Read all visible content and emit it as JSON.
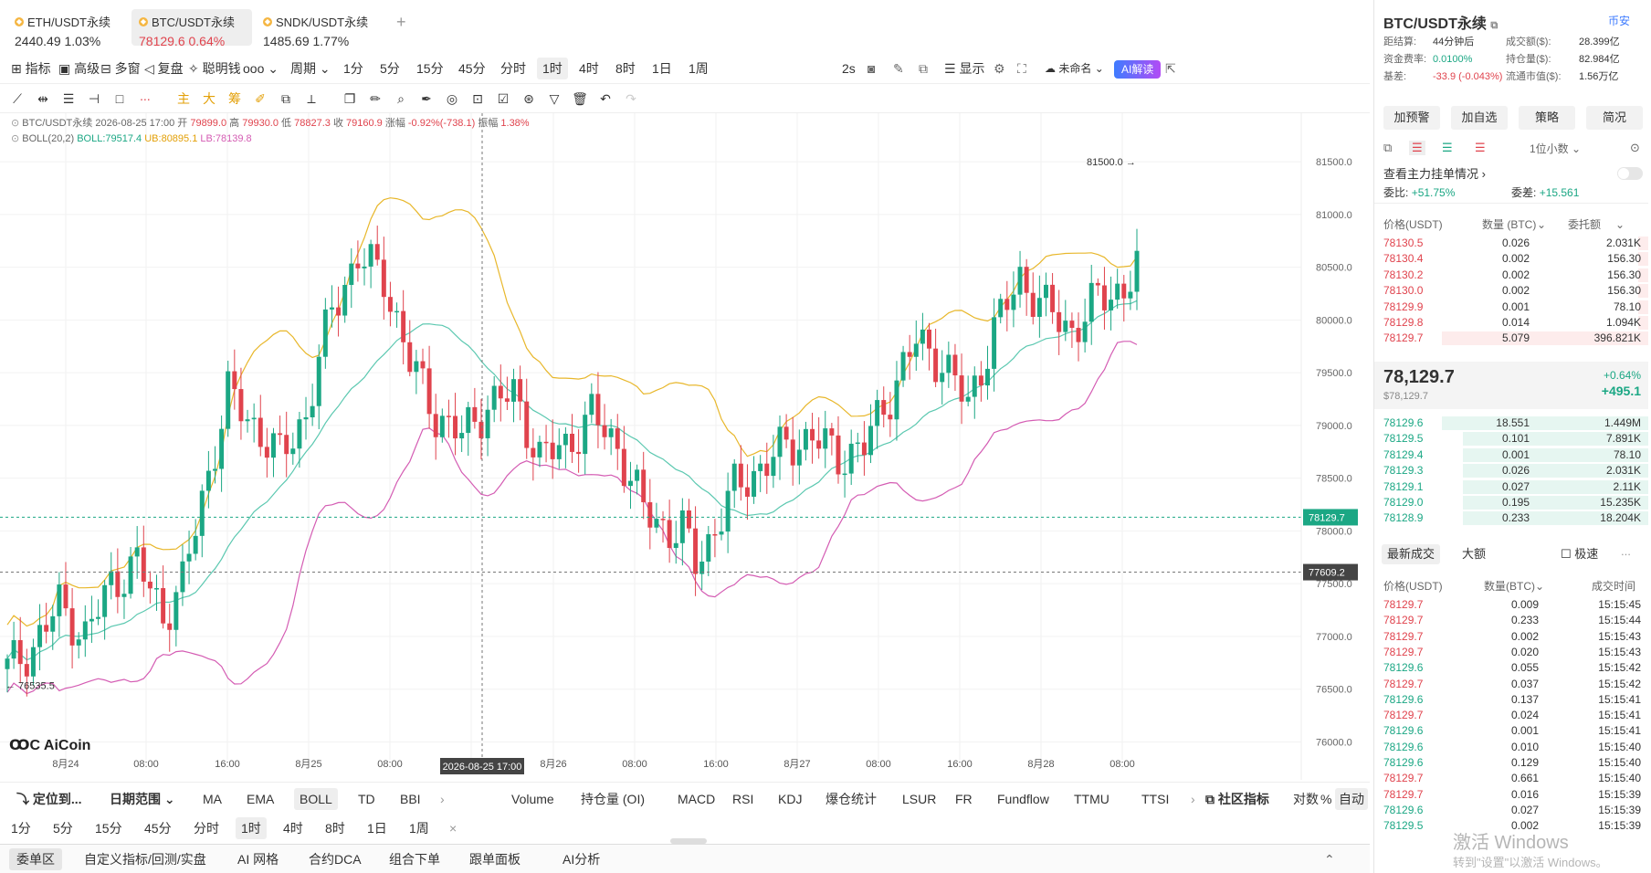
{
  "tabs": [
    {
      "label": "ETH/USDT永续",
      "price": "2440.49",
      "change": "1.03%",
      "dir": "up"
    },
    {
      "label": "BTC/USDT永续",
      "price": "78129.6",
      "change": "0.64%",
      "dir": "up"
    },
    {
      "label": "SNDK/USDT永续",
      "price": "1485.69",
      "change": "1.77%",
      "dir": "up"
    }
  ],
  "add_tab": "+",
  "toolbar1": {
    "items": [
      "指标",
      "高级",
      "多窗",
      "复盘",
      "聪明钱",
      "周期",
      "1分",
      "5分",
      "15分",
      "45分",
      "分时",
      "1时",
      "4时",
      "8时",
      "1日",
      "1周"
    ],
    "right": [
      "2s",
      "显示",
      "未命名",
      "AI解读"
    ]
  },
  "toolbar2": {
    "icons": [
      "line",
      "hline",
      "hlines",
      "ray",
      "rect",
      "dots",
      "主",
      "大",
      "筹",
      "pen",
      "copy",
      "ruler",
      "zoom",
      "brush",
      "eye",
      "lock",
      "check",
      "magnet",
      "filter",
      "trash",
      "undo",
      "redo"
    ]
  },
  "legend": {
    "line1": "BTC/USDT永续  2026-08-25 17:00",
    "open_label": "开",
    "open": "79899.0",
    "high_label": "高",
    "high": "79930.0",
    "low_label": "低",
    "low": "78827.3",
    "close_label": "收",
    "close": "79160.9",
    "chg_label": "涨幅",
    "chg": "-0.92%(-738.1)",
    "amp_label": "振幅",
    "amp": "1.38%",
    "boll": "BOLL(20,2)",
    "boll_v": "BOLL:79517.4",
    "ub": "UB:80895.1",
    "lb": "LB:78139.8"
  },
  "chart_data": {
    "type": "candlestick",
    "interval": "1时",
    "ylim": [
      75900,
      81700
    ],
    "y_ticks": [
      "81500.0",
      "81000.0",
      "80500.0",
      "80000.0",
      "79500.0",
      "79000.0",
      "78500.0",
      "78000.0",
      "77500.0",
      "77000.0",
      "76500.0",
      "76000.0"
    ],
    "x_ticks": [
      "8月24",
      "08:00",
      "16:00",
      "8月25",
      "08:00",
      "16:00",
      "8月26",
      "08:00",
      "16:00",
      "8月27",
      "08:00",
      "16:00",
      "8月28",
      "08:00"
    ],
    "crosshair_x_label": "2026-08-25 17:00",
    "current_price": "78129.7",
    "crosshair_price": "77609.2",
    "high_marker": "81500.0",
    "low_marker": "76535.5",
    "colors": {
      "up": "#1ba784",
      "down": "#e0434d",
      "mid": "#5bc8b0",
      "ub": "#e8b72b",
      "lb": "#d45cb3"
    }
  },
  "bottom1": {
    "locate": "定位到...",
    "range": "日期范围",
    "inds": [
      "MA",
      "EMA",
      "BOLL",
      "TD",
      "BBI"
    ],
    "sub": [
      "Volume",
      "持仓量 (OI)",
      "MACD",
      "RSI",
      "KDJ",
      "爆仓统计",
      "LSUR",
      "FR",
      "Fundflow",
      "TTMU",
      "TTSI"
    ],
    "community": "社区指标",
    "log": "对数",
    "pct": "%",
    "auto": "自动"
  },
  "bottom2": [
    "1分",
    "5分",
    "15分",
    "45分",
    "分时",
    "1时",
    "4时",
    "8时",
    "1日",
    "1周",
    "×"
  ],
  "bottom3": [
    "委单区",
    "自定义指标/回测/实盘",
    "AI 网格",
    "合约DCA",
    "组合下单",
    "跟单面板",
    "AI分析"
  ],
  "watermark": "AiCoin",
  "right": {
    "title": "BTC/USDT永续",
    "link": "币安",
    "stats": [
      [
        "距结算:",
        "44分钟后",
        "成交额($):",
        "28.399亿"
      ],
      [
        "资金费率:",
        "0.0100%",
        "持仓量($):",
        "82.984亿"
      ],
      [
        "基差:",
        "-33.9 (-0.043%)",
        "流通市值($):",
        "1.56万亿"
      ]
    ],
    "buttons": [
      "加预警",
      "加自选",
      "策略",
      "简况"
    ],
    "decimals": "1位小数",
    "main_orders": "查看主力挂单情况",
    "ratio_label": "委比:",
    "ratio": "+51.75%",
    "diff_label": "委差:",
    "diff": "+15.561",
    "ob_headers": [
      "价格(USDT)",
      "数量 (BTC)",
      "委托额"
    ],
    "asks": [
      [
        "78130.5",
        "0.026",
        "2.031K",
        0.05
      ],
      [
        "78130.4",
        "0.002",
        "156.30",
        0.05
      ],
      [
        "78130.2",
        "0.002",
        "156.30",
        0.05
      ],
      [
        "78130.0",
        "0.002",
        "156.30",
        0.05
      ],
      [
        "78129.9",
        "0.001",
        "78.10",
        0.05
      ],
      [
        "78129.8",
        "0.014",
        "1.094K",
        0.05
      ],
      [
        "78129.7",
        "5.079",
        "396.821K",
        1
      ]
    ],
    "last_price": "78,129.7",
    "last_usd": "$78,129.7",
    "last_pct": "+0.64%",
    "last_chg": "+495.1",
    "bids": [
      [
        "78129.6",
        "18.551",
        "1.449M",
        1
      ],
      [
        "78129.5",
        "0.101",
        "7.891K",
        0.9
      ],
      [
        "78129.4",
        "0.001",
        "78.10",
        0.9
      ],
      [
        "78129.3",
        "0.026",
        "2.031K",
        0.9
      ],
      [
        "78129.1",
        "0.027",
        "2.11K",
        0.9
      ],
      [
        "78129.0",
        "0.195",
        "15.235K",
        0.9
      ],
      [
        "78128.9",
        "0.233",
        "18.204K",
        0.9
      ]
    ],
    "trade_tabs": [
      "最新成交",
      "大额",
      "极速"
    ],
    "trade_headers": [
      "价格(USDT)",
      "数量(BTC)",
      "成交时间"
    ],
    "trades": [
      [
        "78129.7",
        "0.009",
        "15:15:45",
        "up"
      ],
      [
        "78129.7",
        "0.233",
        "15:15:44",
        "up"
      ],
      [
        "78129.7",
        "0.002",
        "15:15:43",
        "up"
      ],
      [
        "78129.7",
        "0.020",
        "15:15:43",
        "up"
      ],
      [
        "78129.6",
        "0.055",
        "15:15:42",
        "down"
      ],
      [
        "78129.7",
        "0.037",
        "15:15:42",
        "up"
      ],
      [
        "78129.6",
        "0.137",
        "15:15:41",
        "down"
      ],
      [
        "78129.7",
        "0.024",
        "15:15:41",
        "up"
      ],
      [
        "78129.6",
        "0.001",
        "15:15:41",
        "down"
      ],
      [
        "78129.6",
        "0.010",
        "15:15:40",
        "down"
      ],
      [
        "78129.6",
        "0.129",
        "15:15:40",
        "down"
      ],
      [
        "78129.7",
        "0.661",
        "15:15:40",
        "up"
      ],
      [
        "78129.7",
        "0.016",
        "15:15:39",
        "up"
      ],
      [
        "78129.6",
        "0.027",
        "15:15:39",
        "down"
      ],
      [
        "78129.5",
        "0.002",
        "15:15:39",
        "down"
      ]
    ],
    "windows_watermark": "激活 Windows",
    "windows_sub": "转到\"设置\"以激活 Windows。"
  }
}
